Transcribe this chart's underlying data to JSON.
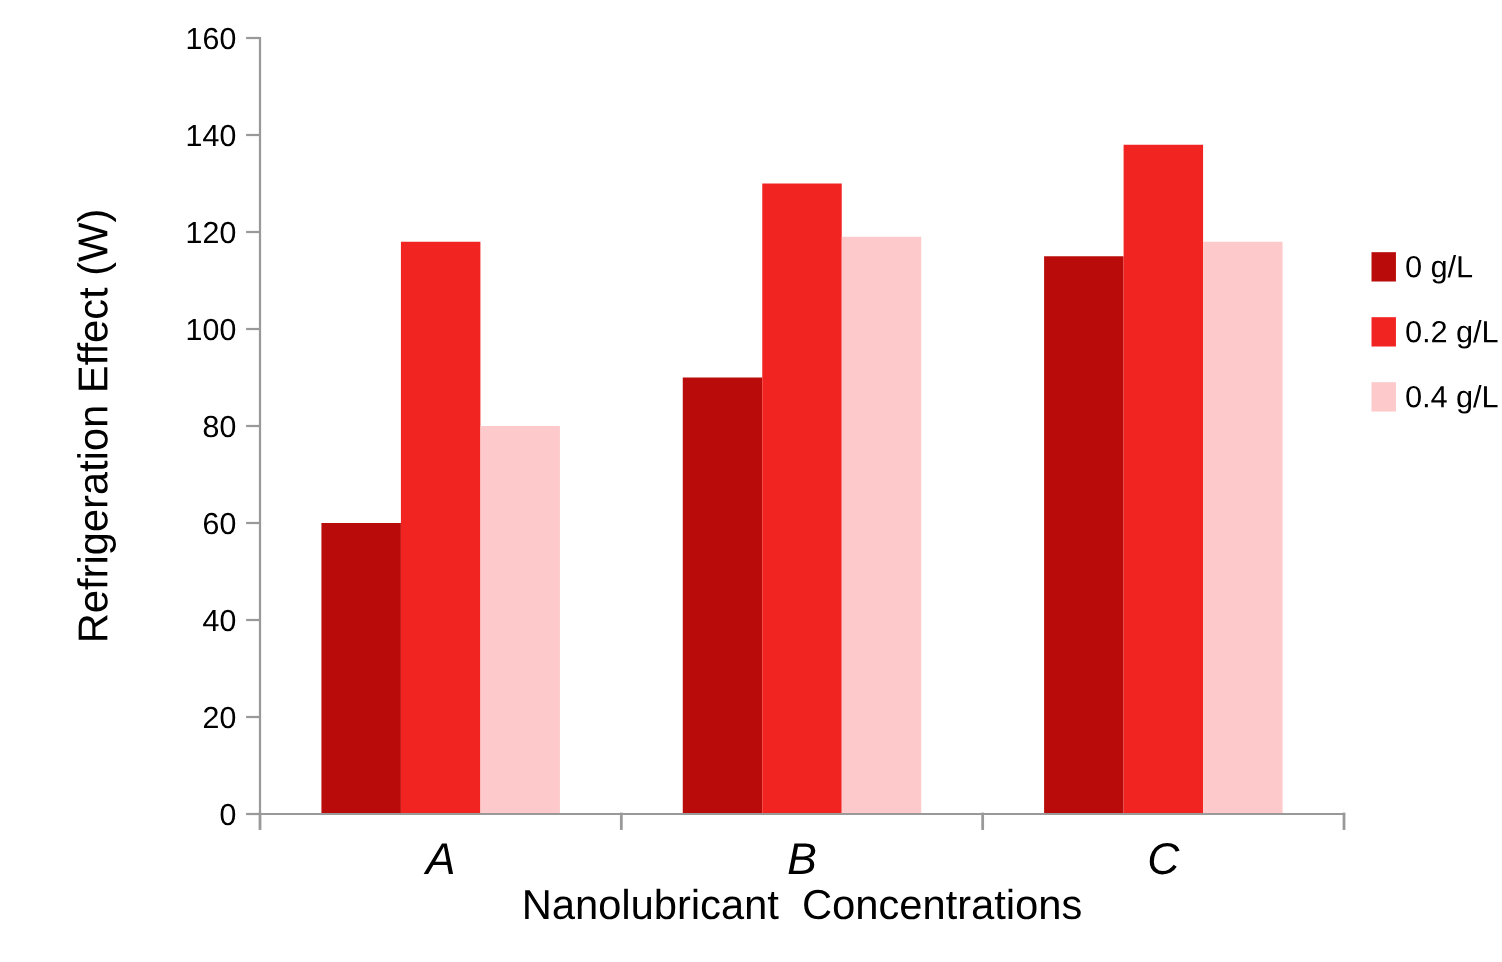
{
  "chart_data": {
    "type": "bar",
    "xlabel": "Nanolubricant  Concentrations",
    "ylabel": "Refrigeration Effect (W)",
    "categories": [
      "A",
      "B",
      "C"
    ],
    "series": [
      {
        "name": "0 g/L",
        "color": "#b90c0a",
        "values": [
          60,
          90,
          115
        ]
      },
      {
        "name": "0.2 g/L",
        "color": "#f22422",
        "values": [
          118,
          130,
          138
        ]
      },
      {
        "name": "0.4 g/L",
        "color": "#fdc9ca",
        "values": [
          80,
          119,
          118
        ]
      }
    ],
    "ylim": [
      0,
      160
    ],
    "yticks": [
      0,
      20,
      40,
      60,
      80,
      100,
      120,
      140,
      160
    ],
    "grid": false,
    "legend": "right"
  }
}
